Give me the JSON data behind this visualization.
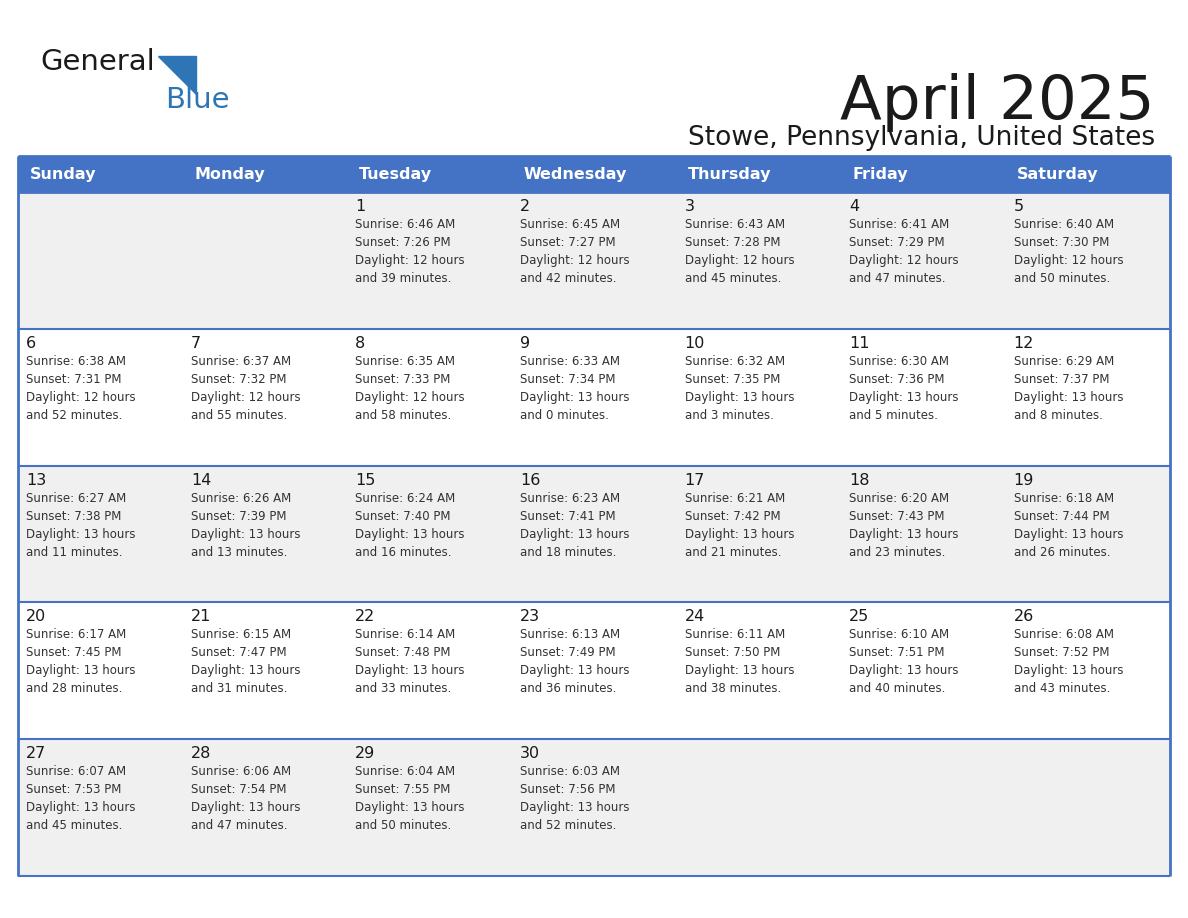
{
  "title": "April 2025",
  "subtitle": "Stowe, Pennsylvania, United States",
  "header_bg_color": "#4472C4",
  "header_text_color": "#FFFFFF",
  "cell_bg_odd": "#F0F0F0",
  "cell_bg_even": "#FFFFFF",
  "row_border_color": "#4472C4",
  "day_headers": [
    "Sunday",
    "Monday",
    "Tuesday",
    "Wednesday",
    "Thursday",
    "Friday",
    "Saturday"
  ],
  "title_color": "#1a1a1a",
  "subtitle_color": "#1a1a1a",
  "cell_text_color": "#333333",
  "day_num_color": "#1a1a1a",
  "logo_general_color": "#1a1a1a",
  "logo_blue_color": "#2E75B6",
  "logo_triangle_color": "#2E75B6",
  "weeks": [
    [
      {
        "day": "",
        "info": ""
      },
      {
        "day": "",
        "info": ""
      },
      {
        "day": "1",
        "info": "Sunrise: 6:46 AM\nSunset: 7:26 PM\nDaylight: 12 hours\nand 39 minutes."
      },
      {
        "day": "2",
        "info": "Sunrise: 6:45 AM\nSunset: 7:27 PM\nDaylight: 12 hours\nand 42 minutes."
      },
      {
        "day": "3",
        "info": "Sunrise: 6:43 AM\nSunset: 7:28 PM\nDaylight: 12 hours\nand 45 minutes."
      },
      {
        "day": "4",
        "info": "Sunrise: 6:41 AM\nSunset: 7:29 PM\nDaylight: 12 hours\nand 47 minutes."
      },
      {
        "day": "5",
        "info": "Sunrise: 6:40 AM\nSunset: 7:30 PM\nDaylight: 12 hours\nand 50 minutes."
      }
    ],
    [
      {
        "day": "6",
        "info": "Sunrise: 6:38 AM\nSunset: 7:31 PM\nDaylight: 12 hours\nand 52 minutes."
      },
      {
        "day": "7",
        "info": "Sunrise: 6:37 AM\nSunset: 7:32 PM\nDaylight: 12 hours\nand 55 minutes."
      },
      {
        "day": "8",
        "info": "Sunrise: 6:35 AM\nSunset: 7:33 PM\nDaylight: 12 hours\nand 58 minutes."
      },
      {
        "day": "9",
        "info": "Sunrise: 6:33 AM\nSunset: 7:34 PM\nDaylight: 13 hours\nand 0 minutes."
      },
      {
        "day": "10",
        "info": "Sunrise: 6:32 AM\nSunset: 7:35 PM\nDaylight: 13 hours\nand 3 minutes."
      },
      {
        "day": "11",
        "info": "Sunrise: 6:30 AM\nSunset: 7:36 PM\nDaylight: 13 hours\nand 5 minutes."
      },
      {
        "day": "12",
        "info": "Sunrise: 6:29 AM\nSunset: 7:37 PM\nDaylight: 13 hours\nand 8 minutes."
      }
    ],
    [
      {
        "day": "13",
        "info": "Sunrise: 6:27 AM\nSunset: 7:38 PM\nDaylight: 13 hours\nand 11 minutes."
      },
      {
        "day": "14",
        "info": "Sunrise: 6:26 AM\nSunset: 7:39 PM\nDaylight: 13 hours\nand 13 minutes."
      },
      {
        "day": "15",
        "info": "Sunrise: 6:24 AM\nSunset: 7:40 PM\nDaylight: 13 hours\nand 16 minutes."
      },
      {
        "day": "16",
        "info": "Sunrise: 6:23 AM\nSunset: 7:41 PM\nDaylight: 13 hours\nand 18 minutes."
      },
      {
        "day": "17",
        "info": "Sunrise: 6:21 AM\nSunset: 7:42 PM\nDaylight: 13 hours\nand 21 minutes."
      },
      {
        "day": "18",
        "info": "Sunrise: 6:20 AM\nSunset: 7:43 PM\nDaylight: 13 hours\nand 23 minutes."
      },
      {
        "day": "19",
        "info": "Sunrise: 6:18 AM\nSunset: 7:44 PM\nDaylight: 13 hours\nand 26 minutes."
      }
    ],
    [
      {
        "day": "20",
        "info": "Sunrise: 6:17 AM\nSunset: 7:45 PM\nDaylight: 13 hours\nand 28 minutes."
      },
      {
        "day": "21",
        "info": "Sunrise: 6:15 AM\nSunset: 7:47 PM\nDaylight: 13 hours\nand 31 minutes."
      },
      {
        "day": "22",
        "info": "Sunrise: 6:14 AM\nSunset: 7:48 PM\nDaylight: 13 hours\nand 33 minutes."
      },
      {
        "day": "23",
        "info": "Sunrise: 6:13 AM\nSunset: 7:49 PM\nDaylight: 13 hours\nand 36 minutes."
      },
      {
        "day": "24",
        "info": "Sunrise: 6:11 AM\nSunset: 7:50 PM\nDaylight: 13 hours\nand 38 minutes."
      },
      {
        "day": "25",
        "info": "Sunrise: 6:10 AM\nSunset: 7:51 PM\nDaylight: 13 hours\nand 40 minutes."
      },
      {
        "day": "26",
        "info": "Sunrise: 6:08 AM\nSunset: 7:52 PM\nDaylight: 13 hours\nand 43 minutes."
      }
    ],
    [
      {
        "day": "27",
        "info": "Sunrise: 6:07 AM\nSunset: 7:53 PM\nDaylight: 13 hours\nand 45 minutes."
      },
      {
        "day": "28",
        "info": "Sunrise: 6:06 AM\nSunset: 7:54 PM\nDaylight: 13 hours\nand 47 minutes."
      },
      {
        "day": "29",
        "info": "Sunrise: 6:04 AM\nSunset: 7:55 PM\nDaylight: 13 hours\nand 50 minutes."
      },
      {
        "day": "30",
        "info": "Sunrise: 6:03 AM\nSunset: 7:56 PM\nDaylight: 13 hours\nand 52 minutes."
      },
      {
        "day": "",
        "info": ""
      },
      {
        "day": "",
        "info": ""
      },
      {
        "day": "",
        "info": ""
      }
    ]
  ]
}
